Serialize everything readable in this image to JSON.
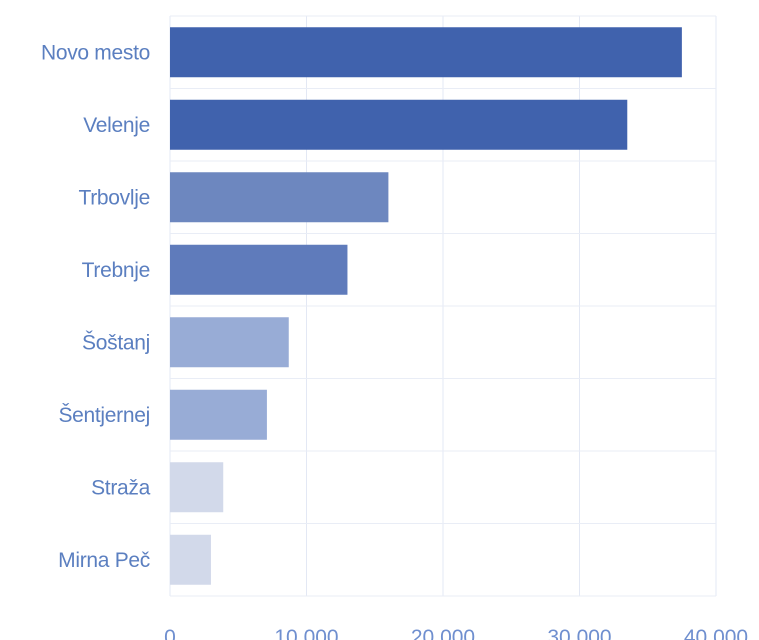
{
  "chart_data": {
    "type": "bar",
    "orientation": "horizontal",
    "categories": [
      "Novo mesto",
      "Velenje",
      "Trbovlje",
      "Trebnje",
      "Šoštanj",
      "Šentjernej",
      "Straža",
      "Mirna Peč"
    ],
    "values": [
      37500,
      33500,
      16000,
      13000,
      8700,
      7100,
      3900,
      3000
    ],
    "colors": [
      "#4062ad",
      "#4062ad",
      "#6d87bf",
      "#5f7bbb",
      "#98acd6",
      "#98acd6",
      "#d2d9ea",
      "#d2d9ea"
    ],
    "xlim": [
      0,
      40000
    ],
    "xticks": [
      0,
      10000,
      20000,
      30000,
      40000
    ],
    "xtick_labels": [
      "0",
      "10.000",
      "20.000",
      "30.000",
      "40.000"
    ],
    "title": "",
    "xlabel": "",
    "ylabel": "",
    "grid": true,
    "legend": "none"
  }
}
